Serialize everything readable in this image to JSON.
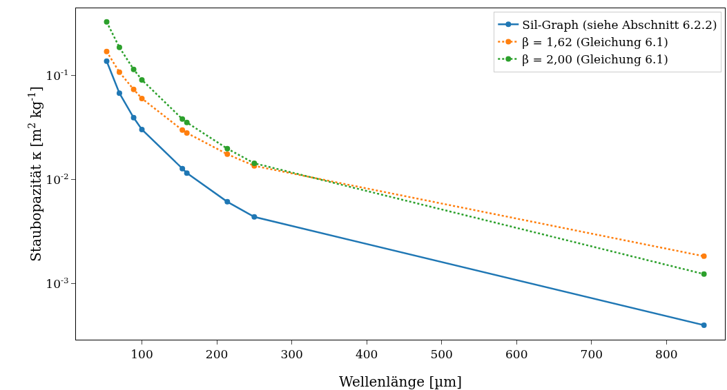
{
  "chart_data": {
    "type": "line",
    "xlabel": "Wellenlänge [µm]",
    "ylabel": "Staubopazität κ [m$^{2}$ kg$^{-1}$]",
    "x": [
      53,
      70,
      89,
      100,
      154,
      160,
      214,
      250,
      850
    ],
    "series": [
      {
        "name": "Sil-Graph (siehe Abschnitt 6.2.2)",
        "color": "#1f77b4",
        "line_style": "solid",
        "values": [
          0.138,
          0.068,
          0.0395,
          0.0304,
          0.0128,
          0.0116,
          0.00614,
          0.00439,
          0.0004
        ]
      },
      {
        "name": "β = 1,62 (Gleichung 6.1)",
        "color": "#ff7f0e",
        "line_style": "dotted",
        "values": [
          0.171,
          0.108,
          0.0738,
          0.0604,
          0.03,
          0.0282,
          0.0176,
          0.0136,
          0.00184
        ]
      },
      {
        "name": "β = 2,00 (Gleichung 6.1)",
        "color": "#2ca02c",
        "line_style": "dotted",
        "values": [
          0.329,
          0.187,
          0.115,
          0.0912,
          0.0383,
          0.0355,
          0.0199,
          0.0144,
          0.00124
        ]
      }
    ],
    "xlim": [
      12,
      878
    ],
    "xticks": [
      100,
      200,
      300,
      400,
      500,
      600,
      700,
      800
    ],
    "ylim": [
      0.00029,
      0.445
    ],
    "yticks": [
      {
        "value": 0.001,
        "label": "10$^{-3}$"
      },
      {
        "value": 0.01,
        "label": "10$^{-2}$"
      },
      {
        "value": 0.1,
        "label": "10$^{-1}$"
      }
    ],
    "log": "y",
    "grid": false,
    "legend": "top right",
    "marker": "circle"
  }
}
